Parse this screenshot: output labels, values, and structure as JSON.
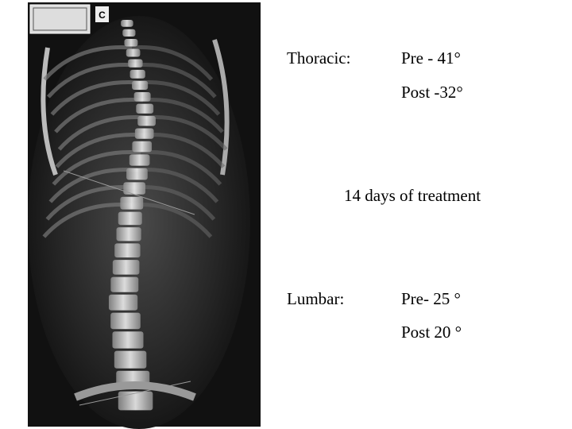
{
  "xray": {
    "marker": "C"
  },
  "thoracic": {
    "label": "Thoracic:",
    "pre": "Pre - 41°",
    "post": "Post -32°"
  },
  "note": "14 days of treatment",
  "lumbar": {
    "label": "Lumbar:",
    "pre": "Pre- 25 °",
    "post": "Post 20 °"
  }
}
